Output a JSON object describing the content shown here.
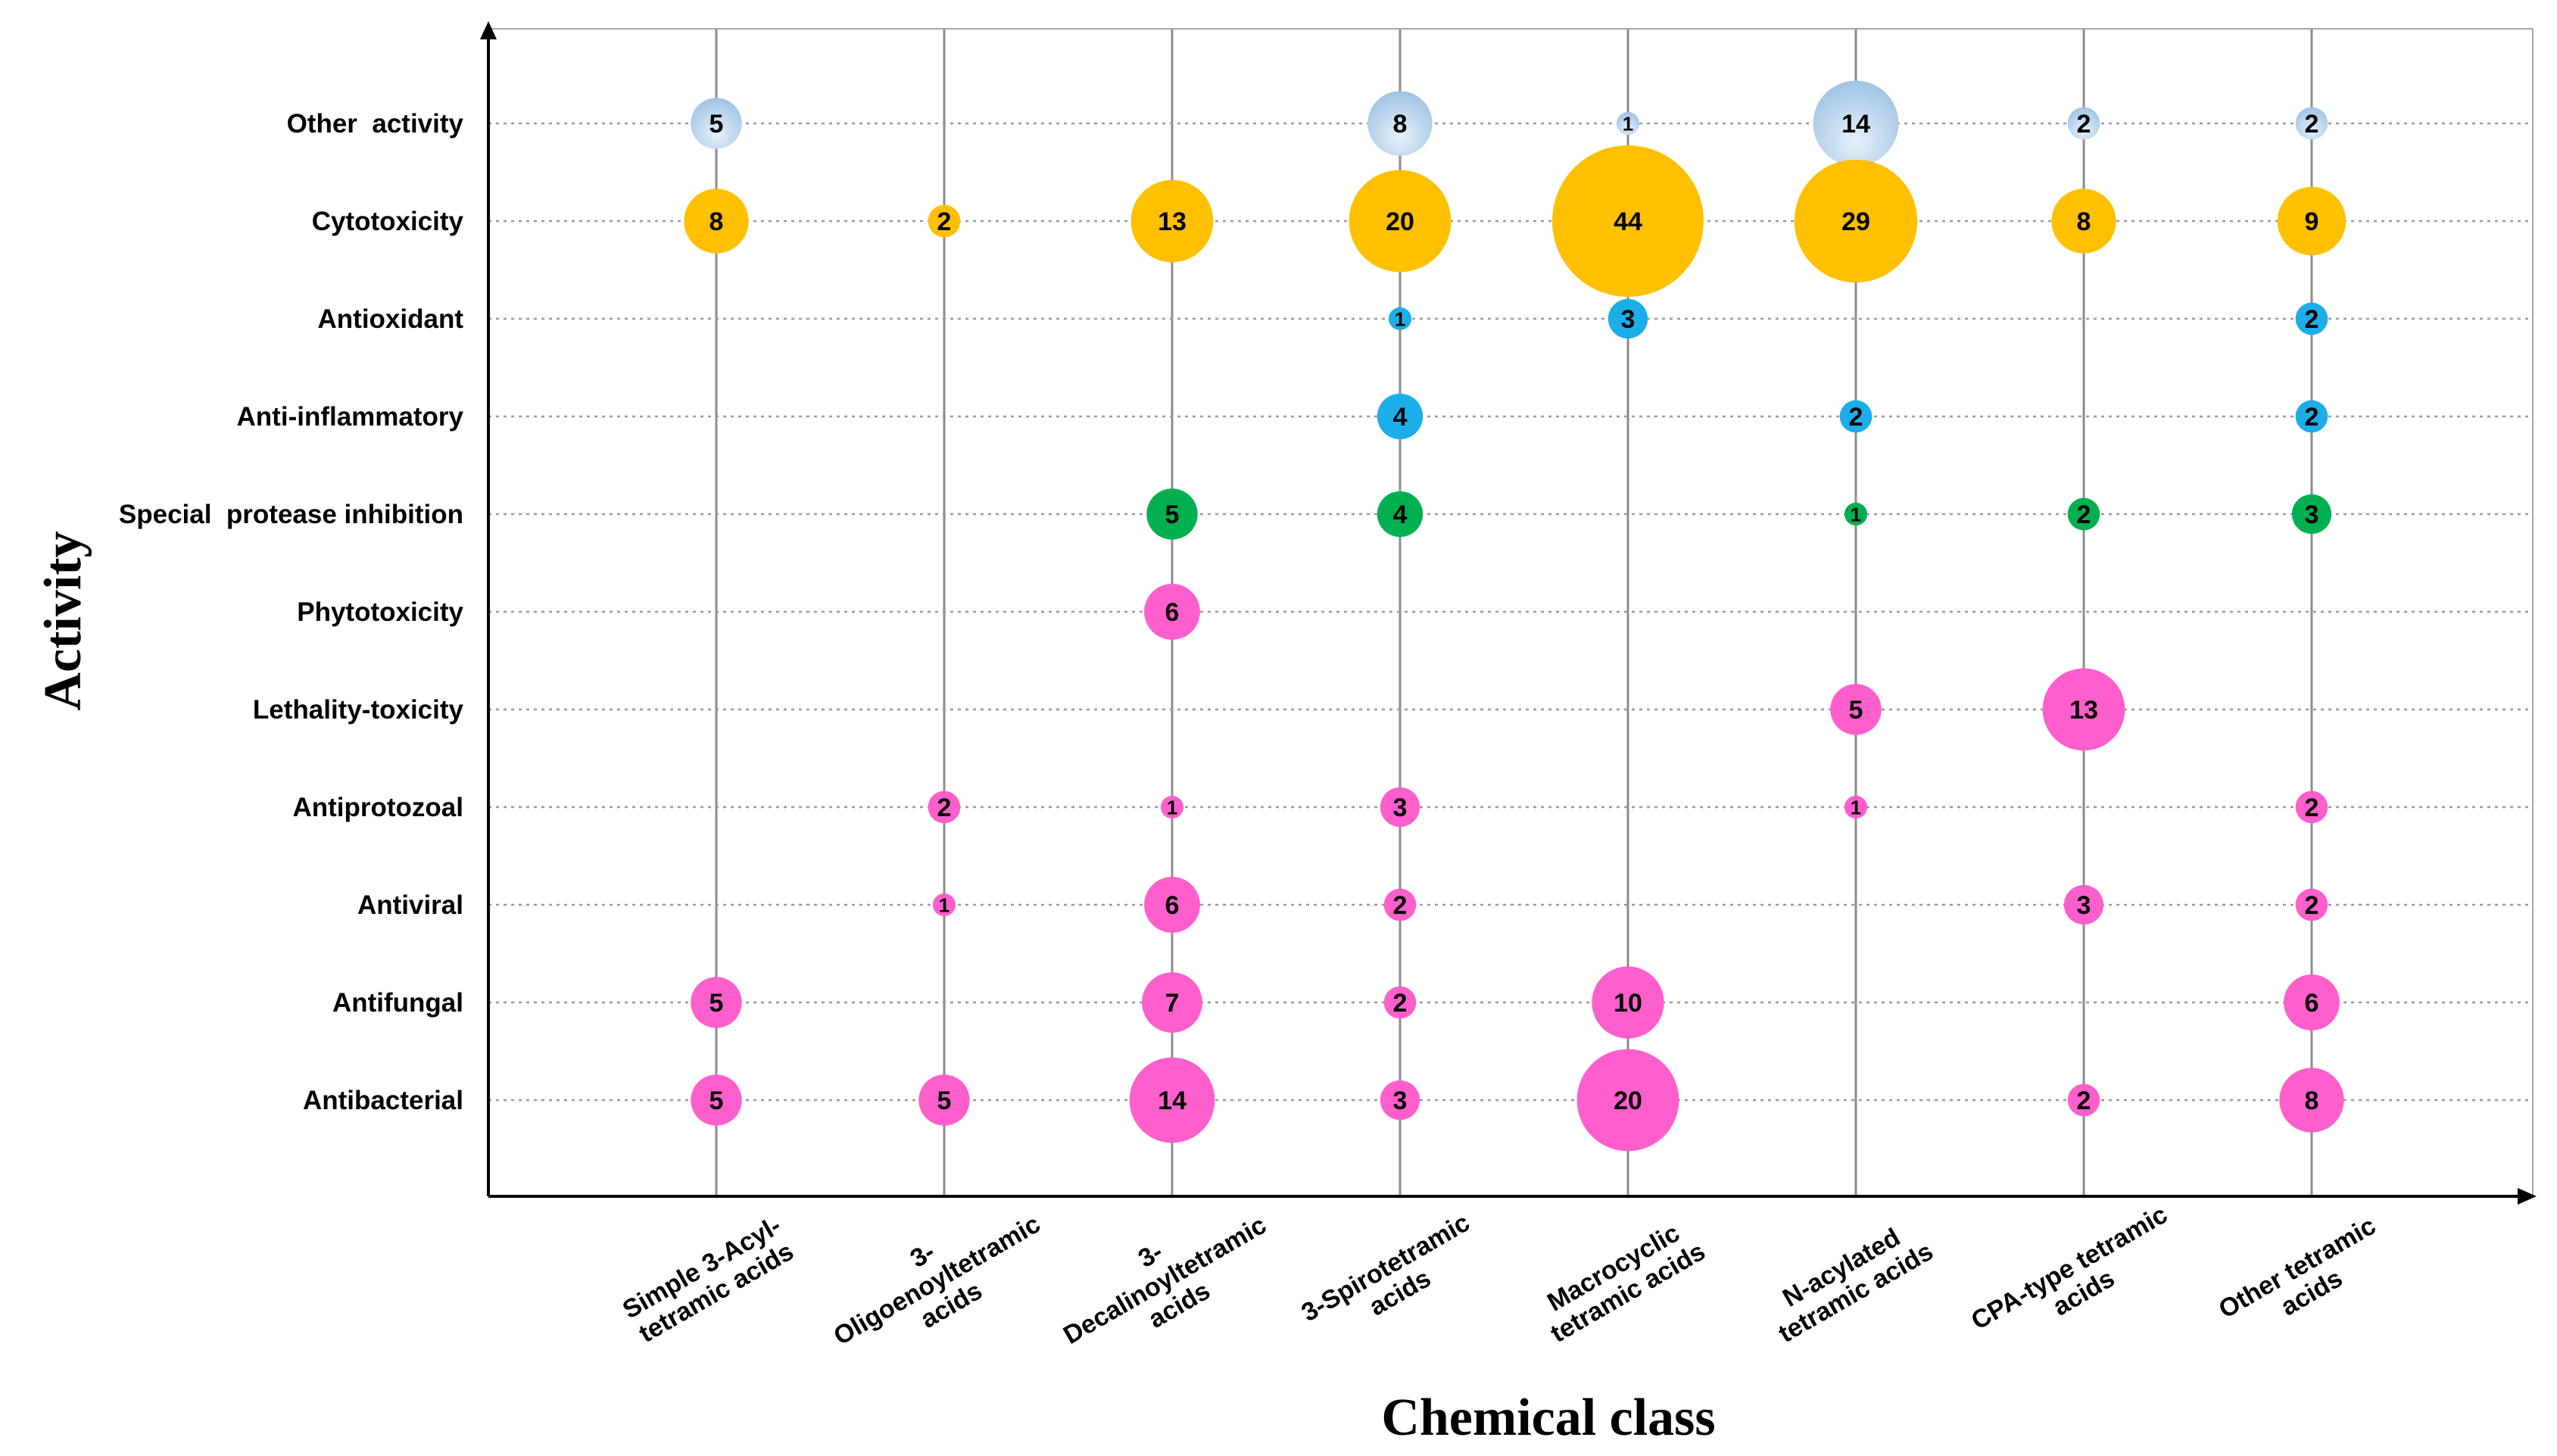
{
  "chart_data": {
    "type": "bubble",
    "title": "",
    "xlabel": "Chemical class",
    "ylabel": "Activity",
    "categories": [
      "Simple 3-Acyl-tetramic acids",
      "3-Oligoenoyltetramic acids",
      "3-Decalinoyltetramic acids",
      "3-Spirotetramic acids",
      "Macrocyclic tetramic acids",
      "N-acylated tetramic acids",
      "CPA-type tetramic acids",
      "Other tetramic acids"
    ],
    "category_label_lines": [
      [
        "Simple 3-Acyl-",
        "tetramic acids"
      ],
      [
        "3-",
        "Oligoenoyltetramic",
        "acids"
      ],
      [
        "3-",
        "Decalinoyltetramic",
        "acids"
      ],
      [
        "3-Spirotetramic",
        "acids"
      ],
      [
        "Macrocyclic",
        "tetramic acids"
      ],
      [
        "N-acylated",
        "tetramic acids"
      ],
      [
        "CPA-type tetramic",
        "acids"
      ],
      [
        "Other tetramic",
        "acids"
      ]
    ],
    "activities": [
      "Other  activity",
      "Cytotoxicity",
      "Antioxidant",
      "Anti-inflammatory",
      "Special  protease inhibition",
      "Phytotoxicity",
      "Lethality-toxicity",
      "Antiprotozoal",
      "Antiviral",
      "Antifungal",
      "Antibacterial"
    ],
    "activity_colors": {
      "Other  activity": "#b9d3ea",
      "Cytotoxicity": "#ffc000",
      "Antioxidant": "#1caee8",
      "Anti-inflammatory": "#1caee8",
      "Special  protease inhibition": "#00b050",
      "Phytotoxicity": "#ff5fcc",
      "Lethality-toxicity": "#ff5fcc",
      "Antiprotozoal": "#ff5fcc",
      "Antiviral": "#ff5fcc",
      "Antifungal": "#ff5fcc",
      "Antibacterial": "#ff5fcc"
    },
    "points": [
      {
        "class": 0,
        "activity": 0,
        "value": 5
      },
      {
        "class": 3,
        "activity": 0,
        "value": 8
      },
      {
        "class": 4,
        "activity": 0,
        "value": 1
      },
      {
        "class": 5,
        "activity": 0,
        "value": 14
      },
      {
        "class": 6,
        "activity": 0,
        "value": 2
      },
      {
        "class": 7,
        "activity": 0,
        "value": 2
      },
      {
        "class": 0,
        "activity": 1,
        "value": 8
      },
      {
        "class": 1,
        "activity": 1,
        "value": 2
      },
      {
        "class": 2,
        "activity": 1,
        "value": 13
      },
      {
        "class": 3,
        "activity": 1,
        "value": 20
      },
      {
        "class": 4,
        "activity": 1,
        "value": 44
      },
      {
        "class": 5,
        "activity": 1,
        "value": 29
      },
      {
        "class": 6,
        "activity": 1,
        "value": 8
      },
      {
        "class": 7,
        "activity": 1,
        "value": 9
      },
      {
        "class": 3,
        "activity": 2,
        "value": 1
      },
      {
        "class": 4,
        "activity": 2,
        "value": 3
      },
      {
        "class": 7,
        "activity": 2,
        "value": 2
      },
      {
        "class": 3,
        "activity": 3,
        "value": 4
      },
      {
        "class": 5,
        "activity": 3,
        "value": 2
      },
      {
        "class": 7,
        "activity": 3,
        "value": 2
      },
      {
        "class": 2,
        "activity": 4,
        "value": 5
      },
      {
        "class": 3,
        "activity": 4,
        "value": 4
      },
      {
        "class": 5,
        "activity": 4,
        "value": 1
      },
      {
        "class": 6,
        "activity": 4,
        "value": 2
      },
      {
        "class": 7,
        "activity": 4,
        "value": 3
      },
      {
        "class": 2,
        "activity": 5,
        "value": 6
      },
      {
        "class": 5,
        "activity": 6,
        "value": 5
      },
      {
        "class": 6,
        "activity": 6,
        "value": 13
      },
      {
        "class": 1,
        "activity": 7,
        "value": 2
      },
      {
        "class": 2,
        "activity": 7,
        "value": 1
      },
      {
        "class": 3,
        "activity": 7,
        "value": 3
      },
      {
        "class": 5,
        "activity": 7,
        "value": 1
      },
      {
        "class": 7,
        "activity": 7,
        "value": 2
      },
      {
        "class": 1,
        "activity": 8,
        "value": 1
      },
      {
        "class": 2,
        "activity": 8,
        "value": 6
      },
      {
        "class": 3,
        "activity": 8,
        "value": 2
      },
      {
        "class": 6,
        "activity": 8,
        "value": 3
      },
      {
        "class": 7,
        "activity": 8,
        "value": 2
      },
      {
        "class": 0,
        "activity": 9,
        "value": 5
      },
      {
        "class": 2,
        "activity": 9,
        "value": 7
      },
      {
        "class": 3,
        "activity": 9,
        "value": 2
      },
      {
        "class": 4,
        "activity": 9,
        "value": 10
      },
      {
        "class": 7,
        "activity": 9,
        "value": 6
      },
      {
        "class": 0,
        "activity": 10,
        "value": 5
      },
      {
        "class": 1,
        "activity": 10,
        "value": 5
      },
      {
        "class": 2,
        "activity": 10,
        "value": 14
      },
      {
        "class": 3,
        "activity": 10,
        "value": 3
      },
      {
        "class": 4,
        "activity": 10,
        "value": 20
      },
      {
        "class": 6,
        "activity": 10,
        "value": 2
      },
      {
        "class": 7,
        "activity": 10,
        "value": 8
      }
    ],
    "grid": true
  }
}
